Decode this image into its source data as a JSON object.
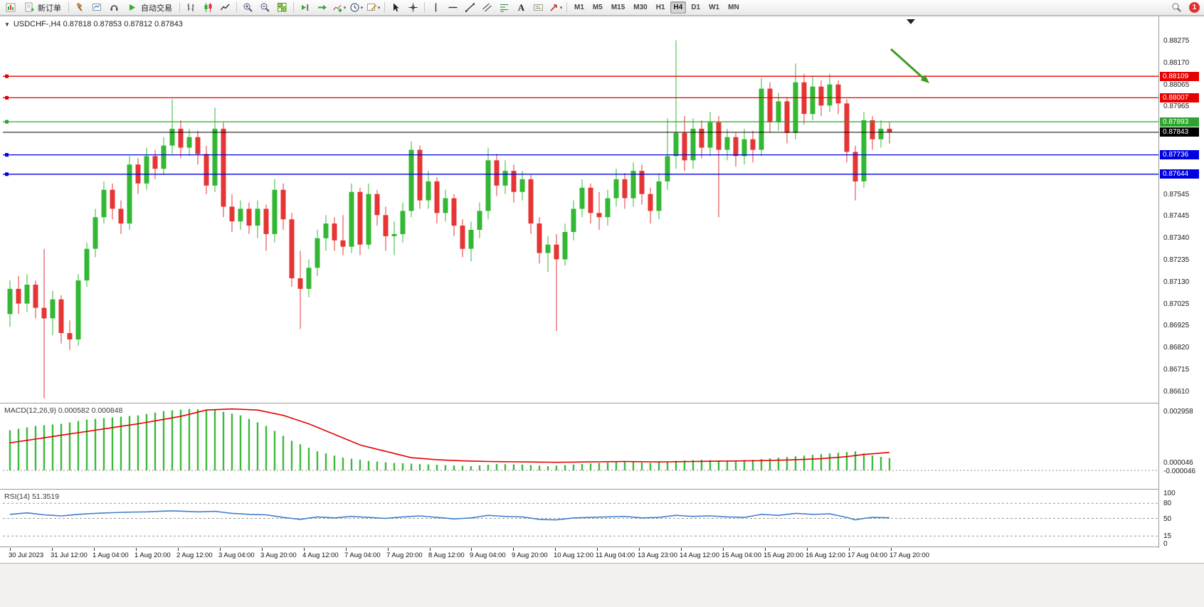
{
  "toolbar": {
    "new_order_label": "新订单",
    "autotrading_label": "自动交易",
    "text_tool_label": "A",
    "timeframes": [
      "M1",
      "M5",
      "M15",
      "M30",
      "H1",
      "H4",
      "D1",
      "W1",
      "MN"
    ],
    "active_timeframe": "H4",
    "notification_count": "1",
    "icons": [
      "new-chart-icon",
      "new-order-icon",
      "toolbox-icon",
      "profiles-icon",
      "market-watch-icon",
      "autotrading-icon",
      "ohlc-bars-icon",
      "candlestick-icon",
      "line-chart-icon",
      "zoom-in-icon",
      "zoom-out-icon",
      "tile-windows-icon",
      "chart-shift-icon",
      "auto-scroll-icon",
      "indicators-icon",
      "periods-icon",
      "templates-icon",
      "cursor-icon",
      "crosshair-icon",
      "vertical-line-icon",
      "horizontal-line-icon",
      "trendline-icon",
      "channel-icon",
      "fibonacci-icon",
      "text-icon",
      "label-icon",
      "shapes-icon",
      "search-icon"
    ]
  },
  "chart_data": {
    "type": "candlestick",
    "symbol": "USDCHF-",
    "timeframe": "H4",
    "info_line": "USDCHF-,H4  0.87818 0.87853 0.87812 0.87843",
    "ohlc_info": {
      "open": "0.87818",
      "high": "0.87853",
      "low": "0.87812",
      "close": "0.87843"
    },
    "colors": {
      "up": "#33b833",
      "down": "#e53535"
    },
    "price_axis": {
      "min": 0.8661,
      "max": 0.88275,
      "labels": [
        "0.88275",
        "0.88170",
        "0.88065",
        "0.87965",
        "0.87545",
        "0.87445",
        "0.87340",
        "0.87235",
        "0.87130",
        "0.87025",
        "0.86925",
        "0.86820",
        "0.86715",
        "0.86610"
      ]
    },
    "levels": [
      {
        "name": "resistance-upper",
        "price": 0.88109,
        "label": "0.88109",
        "color": "#e60000"
      },
      {
        "name": "resistance-lower",
        "price": 0.88007,
        "label": "0.88007",
        "color": "#e60000"
      },
      {
        "name": "green-level",
        "price": 0.87893,
        "label": "0.87893",
        "color": "#2fa32f"
      },
      {
        "name": "current-price",
        "price": 0.87843,
        "label": "0.87843",
        "color": "#000000"
      },
      {
        "name": "support-upper",
        "price": 0.87736,
        "label": "0.87736",
        "color": "#0000e0"
      },
      {
        "name": "support-lower",
        "price": 0.87644,
        "label": "0.87644",
        "color": "#0000e0"
      }
    ],
    "candles": [
      [
        0.8698,
        0.8714,
        0.8692,
        0.871
      ],
      [
        0.871,
        0.8716,
        0.8698,
        0.8703
      ],
      [
        0.8703,
        0.8717,
        0.8699,
        0.8712
      ],
      [
        0.8712,
        0.8714,
        0.8696,
        0.8701
      ],
      [
        0.8701,
        0.8729,
        0.8658,
        0.8696
      ],
      [
        0.8696,
        0.8709,
        0.8688,
        0.8705
      ],
      [
        0.8705,
        0.8707,
        0.8684,
        0.8689
      ],
      [
        0.8689,
        0.8695,
        0.8681,
        0.8686
      ],
      [
        0.8686,
        0.8717,
        0.8683,
        0.8714
      ],
      [
        0.8714,
        0.8732,
        0.8711,
        0.8729
      ],
      [
        0.8729,
        0.8748,
        0.8725,
        0.8744
      ],
      [
        0.8744,
        0.8761,
        0.8741,
        0.8757
      ],
      [
        0.8757,
        0.876,
        0.8743,
        0.8748
      ],
      [
        0.8748,
        0.8752,
        0.8736,
        0.8741
      ],
      [
        0.8741,
        0.8773,
        0.8738,
        0.8769
      ],
      [
        0.8769,
        0.8772,
        0.8755,
        0.876
      ],
      [
        0.876,
        0.8777,
        0.8757,
        0.8773
      ],
      [
        0.8773,
        0.8776,
        0.8762,
        0.8767
      ],
      [
        0.8767,
        0.8782,
        0.8764,
        0.8778
      ],
      [
        0.8778,
        0.88,
        0.8774,
        0.8786
      ],
      [
        0.8786,
        0.879,
        0.8772,
        0.8777
      ],
      [
        0.8777,
        0.8786,
        0.8773,
        0.8782
      ],
      [
        0.8782,
        0.8785,
        0.8769,
        0.8774
      ],
      [
        0.8774,
        0.8778,
        0.8755,
        0.8759
      ],
      [
        0.8759,
        0.8796,
        0.8756,
        0.8786
      ],
      [
        0.8786,
        0.8789,
        0.8744,
        0.8749
      ],
      [
        0.8749,
        0.8755,
        0.8737,
        0.8742
      ],
      [
        0.8742,
        0.8752,
        0.8738,
        0.8748
      ],
      [
        0.8748,
        0.8751,
        0.8736,
        0.874
      ],
      [
        0.874,
        0.8752,
        0.8734,
        0.8748
      ],
      [
        0.8748,
        0.875,
        0.8728,
        0.8736
      ],
      [
        0.8736,
        0.8762,
        0.8732,
        0.8757
      ],
      [
        0.8757,
        0.876,
        0.8738,
        0.8743
      ],
      [
        0.8743,
        0.8746,
        0.8711,
        0.8715
      ],
      [
        0.8715,
        0.8728,
        0.8691,
        0.871
      ],
      [
        0.871,
        0.8724,
        0.8706,
        0.872
      ],
      [
        0.872,
        0.8738,
        0.8716,
        0.8734
      ],
      [
        0.8734,
        0.8745,
        0.8728,
        0.8741
      ],
      [
        0.8741,
        0.8744,
        0.8728,
        0.8733
      ],
      [
        0.8733,
        0.8745,
        0.8726,
        0.873
      ],
      [
        0.873,
        0.876,
        0.8727,
        0.8756
      ],
      [
        0.8756,
        0.8758,
        0.8726,
        0.8731
      ],
      [
        0.8731,
        0.876,
        0.8729,
        0.8755
      ],
      [
        0.8755,
        0.8757,
        0.874,
        0.8745
      ],
      [
        0.8745,
        0.8749,
        0.8728,
        0.8735
      ],
      [
        0.8735,
        0.8742,
        0.8726,
        0.8736
      ],
      [
        0.8736,
        0.8751,
        0.8732,
        0.8747
      ],
      [
        0.8747,
        0.878,
        0.8744,
        0.8776
      ],
      [
        0.8776,
        0.8778,
        0.8748,
        0.8752
      ],
      [
        0.8752,
        0.8766,
        0.8748,
        0.8761
      ],
      [
        0.8761,
        0.8763,
        0.8741,
        0.8746
      ],
      [
        0.8746,
        0.8757,
        0.8742,
        0.8753
      ],
      [
        0.8753,
        0.8755,
        0.8735,
        0.874
      ],
      [
        0.874,
        0.8743,
        0.8725,
        0.8729
      ],
      [
        0.8729,
        0.8742,
        0.8723,
        0.8738
      ],
      [
        0.8738,
        0.8751,
        0.8734,
        0.8747
      ],
      [
        0.8747,
        0.8777,
        0.8743,
        0.8771
      ],
      [
        0.8771,
        0.8774,
        0.8754,
        0.8759
      ],
      [
        0.8759,
        0.8771,
        0.8755,
        0.8766
      ],
      [
        0.8766,
        0.8769,
        0.8751,
        0.8756
      ],
      [
        0.8756,
        0.8766,
        0.8752,
        0.8762
      ],
      [
        0.8762,
        0.8764,
        0.8736,
        0.8741
      ],
      [
        0.8741,
        0.8744,
        0.8722,
        0.8727
      ],
      [
        0.8727,
        0.8735,
        0.8718,
        0.8731
      ],
      [
        0.8731,
        0.8736,
        0.869,
        0.8724
      ],
      [
        0.8724,
        0.8741,
        0.8721,
        0.8737
      ],
      [
        0.8737,
        0.8752,
        0.8733,
        0.8748
      ],
      [
        0.8748,
        0.8762,
        0.8744,
        0.8758
      ],
      [
        0.8758,
        0.876,
        0.8741,
        0.8746
      ],
      [
        0.8746,
        0.8756,
        0.8738,
        0.8744
      ],
      [
        0.8744,
        0.8757,
        0.874,
        0.8753
      ],
      [
        0.8753,
        0.8767,
        0.8749,
        0.8762
      ],
      [
        0.8762,
        0.8765,
        0.8748,
        0.8753
      ],
      [
        0.8753,
        0.877,
        0.8749,
        0.8766
      ],
      [
        0.8766,
        0.8769,
        0.875,
        0.8755
      ],
      [
        0.8755,
        0.8758,
        0.8741,
        0.8747
      ],
      [
        0.8747,
        0.8765,
        0.8743,
        0.8761
      ],
      [
        0.8761,
        0.8791,
        0.8757,
        0.8773
      ],
      [
        0.8773,
        0.8828,
        0.8767,
        0.8784
      ],
      [
        0.8784,
        0.8792,
        0.8766,
        0.8771
      ],
      [
        0.8771,
        0.8791,
        0.8767,
        0.8786
      ],
      [
        0.8786,
        0.879,
        0.8772,
        0.8777
      ],
      [
        0.8777,
        0.8794,
        0.8773,
        0.8789
      ],
      [
        0.8789,
        0.8792,
        0.8744,
        0.8776
      ],
      [
        0.8776,
        0.8786,
        0.8771,
        0.8782
      ],
      [
        0.8782,
        0.8784,
        0.8768,
        0.8773
      ],
      [
        0.8773,
        0.8786,
        0.8769,
        0.8781
      ],
      [
        0.8781,
        0.8785,
        0.877,
        0.8776
      ],
      [
        0.8776,
        0.881,
        0.8773,
        0.8805
      ],
      [
        0.8805,
        0.8808,
        0.8784,
        0.8789
      ],
      [
        0.8789,
        0.8803,
        0.8785,
        0.8799
      ],
      [
        0.8799,
        0.8801,
        0.8779,
        0.8784
      ],
      [
        0.8784,
        0.8817,
        0.8781,
        0.8808
      ],
      [
        0.8808,
        0.8812,
        0.8788,
        0.8793
      ],
      [
        0.8793,
        0.8811,
        0.879,
        0.8806
      ],
      [
        0.8806,
        0.8809,
        0.8792,
        0.8797
      ],
      [
        0.8797,
        0.8812,
        0.8794,
        0.8807
      ],
      [
        0.8807,
        0.8809,
        0.8793,
        0.8798
      ],
      [
        0.8798,
        0.88,
        0.877,
        0.8775
      ],
      [
        0.8775,
        0.8778,
        0.8752,
        0.8761
      ],
      [
        0.8761,
        0.8794,
        0.8758,
        0.879
      ],
      [
        0.879,
        0.8792,
        0.8776,
        0.8781
      ],
      [
        0.8781,
        0.879,
        0.8777,
        0.8786
      ],
      [
        0.8786,
        0.8789,
        0.8779,
        0.87843
      ]
    ],
    "time_labels": [
      "30 Jul 2023",
      "31 Jul 12:00",
      "1 Aug 04:00",
      "1 Aug 20:00",
      "2 Aug 12:00",
      "3 Aug 04:00",
      "3 Aug 20:00",
      "4 Aug 12:00",
      "7 Aug 04:00",
      "7 Aug 20:00",
      "8 Aug 12:00",
      "9 Aug 04:00",
      "9 Aug 20:00",
      "10 Aug 12:00",
      "11 Aug 04:00",
      "13 Aug 23:00",
      "14 Aug 12:00",
      "15 Aug 04:00",
      "15 Aug 20:00",
      "16 Aug 12:00",
      "17 Aug 04:00",
      "17 Aug 20:00"
    ],
    "macd": {
      "label": "MACD(12,26,9) 0.000582 0.000848",
      "axis_labels": [
        "0.002958",
        "0.000046",
        "-0.000046"
      ],
      "scale_max": 0.002958,
      "bar_color": "#3cba3c",
      "line_color": "#e60000",
      "hist_points": [
        [
          0,
          0.0019
        ],
        [
          3,
          0.0021
        ],
        [
          6,
          0.0022
        ],
        [
          9,
          0.0024
        ],
        [
          12,
          0.0025
        ],
        [
          15,
          0.0026
        ],
        [
          18,
          0.0028
        ],
        [
          21,
          0.0029
        ],
        [
          24,
          0.00285
        ],
        [
          27,
          0.0026
        ],
        [
          30,
          0.0021
        ],
        [
          33,
          0.0014
        ],
        [
          36,
          0.0009
        ],
        [
          39,
          0.0006
        ],
        [
          42,
          0.00045
        ],
        [
          45,
          0.00035
        ],
        [
          48,
          0.0003
        ],
        [
          51,
          0.00025
        ],
        [
          54,
          0.0002
        ],
        [
          57,
          0.0003
        ],
        [
          60,
          0.00028
        ],
        [
          63,
          0.0002
        ],
        [
          66,
          0.00028
        ],
        [
          69,
          0.00035
        ],
        [
          72,
          0.0004
        ],
        [
          75,
          0.00035
        ],
        [
          78,
          0.00045
        ],
        [
          81,
          0.0005
        ],
        [
          84,
          0.00045
        ],
        [
          87,
          0.0005
        ],
        [
          90,
          0.0006
        ],
        [
          93,
          0.0007
        ],
        [
          96,
          0.0008
        ],
        [
          99,
          0.0009
        ],
        [
          101,
          0.0007
        ],
        [
          103,
          0.00058
        ]
      ],
      "signal_points": [
        [
          0,
          0.0013
        ],
        [
          5,
          0.0016
        ],
        [
          10,
          0.0019
        ],
        [
          15,
          0.0022
        ],
        [
          20,
          0.00255
        ],
        [
          23,
          0.00285
        ],
        [
          26,
          0.0029
        ],
        [
          29,
          0.00285
        ],
        [
          32,
          0.0026
        ],
        [
          35,
          0.0022
        ],
        [
          38,
          0.0017
        ],
        [
          41,
          0.0012
        ],
        [
          44,
          0.0009
        ],
        [
          47,
          0.0006
        ],
        [
          50,
          0.0005
        ],
        [
          53,
          0.00045
        ],
        [
          56,
          0.00042
        ],
        [
          60,
          0.0004
        ],
        [
          64,
          0.00038
        ],
        [
          68,
          0.0004
        ],
        [
          72,
          0.00042
        ],
        [
          76,
          0.0004
        ],
        [
          80,
          0.00042
        ],
        [
          84,
          0.00044
        ],
        [
          88,
          0.00046
        ],
        [
          92,
          0.0005
        ],
        [
          95,
          0.00055
        ],
        [
          98,
          0.00065
        ],
        [
          100,
          0.00075
        ],
        [
          103,
          0.00085
        ]
      ]
    },
    "rsi": {
      "label": "RSI(14) 51.3519",
      "axis_labels": [
        "100",
        "80",
        "50",
        "15",
        "0"
      ],
      "level_lines": [
        80,
        50,
        15
      ],
      "line_color": "#3f7fce",
      "points": [
        [
          0,
          58
        ],
        [
          2,
          61
        ],
        [
          4,
          57
        ],
        [
          6,
          55
        ],
        [
          8,
          58
        ],
        [
          10,
          60
        ],
        [
          13,
          62
        ],
        [
          16,
          63
        ],
        [
          19,
          65
        ],
        [
          22,
          63
        ],
        [
          24,
          64
        ],
        [
          26,
          60
        ],
        [
          28,
          58
        ],
        [
          30,
          57
        ],
        [
          32,
          52
        ],
        [
          34,
          48
        ],
        [
          36,
          53
        ],
        [
          38,
          51
        ],
        [
          40,
          54
        ],
        [
          42,
          52
        ],
        [
          44,
          50
        ],
        [
          46,
          53
        ],
        [
          48,
          55
        ],
        [
          50,
          52
        ],
        [
          52,
          49
        ],
        [
          54,
          51
        ],
        [
          56,
          56
        ],
        [
          58,
          54
        ],
        [
          60,
          53
        ],
        [
          62,
          48
        ],
        [
          64,
          47
        ],
        [
          66,
          51
        ],
        [
          68,
          52
        ],
        [
          70,
          53
        ],
        [
          72,
          54
        ],
        [
          74,
          51
        ],
        [
          76,
          52
        ],
        [
          78,
          56
        ],
        [
          80,
          54
        ],
        [
          82,
          55
        ],
        [
          84,
          53
        ],
        [
          86,
          52
        ],
        [
          88,
          58
        ],
        [
          90,
          56
        ],
        [
          92,
          60
        ],
        [
          94,
          58
        ],
        [
          96,
          59
        ],
        [
          98,
          52
        ],
        [
          99,
          47
        ],
        [
          100,
          50
        ],
        [
          101,
          52
        ],
        [
          103,
          51.35
        ]
      ]
    },
    "annotation_arrow": {
      "color": "#3f9b22"
    }
  }
}
